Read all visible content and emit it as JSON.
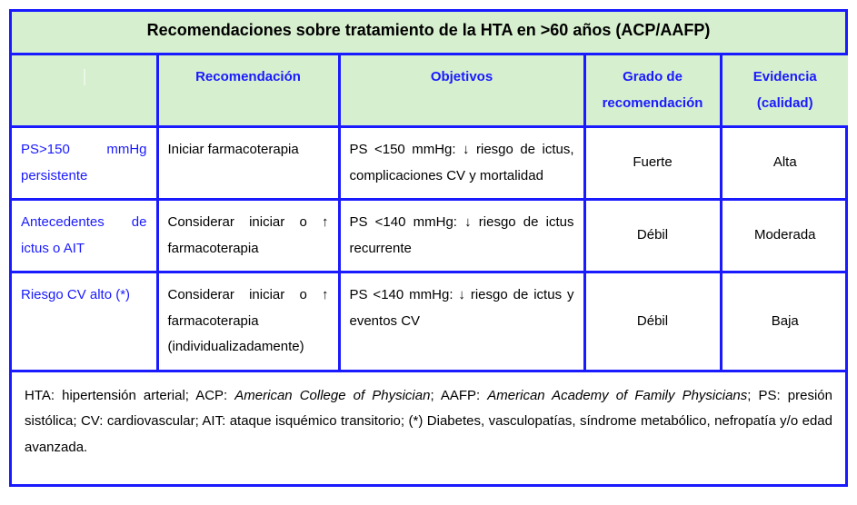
{
  "title": "Recomendaciones sobre tratamiento de la HTA en >60 años (ACP/AAFP)",
  "columns": {
    "c1": "",
    "c2": "Recomendación",
    "c3": "Objetivos",
    "c4": "Grado de recomendación",
    "c5": "Evidencia (calidad)"
  },
  "rows": [
    {
      "label": "PS>150 mmHg persistente",
      "rec": "Iniciar farmacoterapia",
      "obj": "PS <150 mmHg: ↓ riesgo de ictus, complicaciones CV y mortalidad",
      "grade": "Fuerte",
      "ev": "Alta"
    },
    {
      "label": "Antecedentes de ictus o AIT",
      "rec": "Considerar iniciar o ↑ farmacoterapia",
      "obj": "PS <140 mmHg: ↓ riesgo de ictus recurrente",
      "grade": "Débil",
      "ev": "Moderada"
    },
    {
      "label": "Riesgo CV alto (*)",
      "rec": "Considerar iniciar o ↑ farmacoterapia (individualizadamente)",
      "obj": "PS <140 mmHg: ↓ riesgo de ictus y eventos CV",
      "grade": "Débil",
      "ev": "Baja"
    }
  ],
  "footer": {
    "p1a": "HTA: hipertensión arterial; ACP: ",
    "p1b": "American College of Physician",
    "p1c": "; AAFP: ",
    "p1d": "American Academy of Family Physicians",
    "p1e": "; PS: presión sistólica; CV: cardiovascular; AIT: ataque isquémico transitorio; (*) Diabetes, vasculopatías, síndrome metabólico, nefropatía y/o edad avanzada."
  },
  "colors": {
    "border": "#1a1aff",
    "header_bg": "#d6efce",
    "link": "#1a1aff",
    "text": "#000000"
  }
}
